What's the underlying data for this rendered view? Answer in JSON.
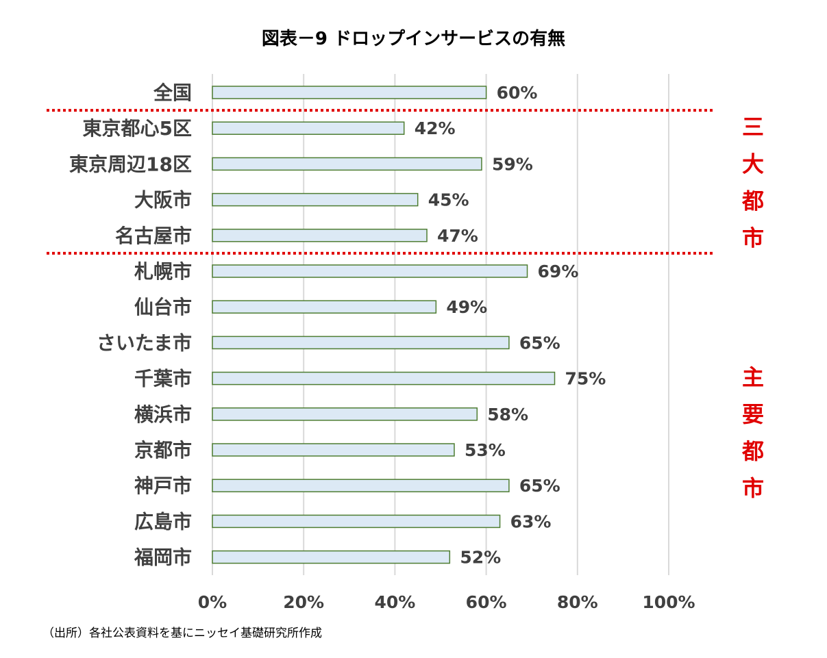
{
  "chart_data": {
    "type": "bar",
    "orientation": "horizontal",
    "title": "図表－9 ドロップインサービスの有無",
    "categories": [
      "全国",
      "東京都心5区",
      "東京周辺18区",
      "大阪市",
      "名古屋市",
      "札幌市",
      "仙台市",
      "さいたま市",
      "千葉市",
      "横浜市",
      "京都市",
      "神戸市",
      "広島市",
      "福岡市"
    ],
    "values": [
      60,
      42,
      59,
      45,
      47,
      69,
      49,
      65,
      75,
      58,
      53,
      65,
      63,
      52
    ],
    "value_labels": [
      "60%",
      "42%",
      "59%",
      "45%",
      "47%",
      "69%",
      "49%",
      "65%",
      "75%",
      "58%",
      "53%",
      "65%",
      "63%",
      "52%"
    ],
    "xlim": [
      0,
      100
    ],
    "xticks": [
      "0%",
      "20%",
      "40%",
      "60%",
      "80%",
      "100%"
    ],
    "grid": "vertical",
    "legend": "none",
    "groups": [
      {
        "label": [
          "三",
          "大",
          "都",
          "市"
        ],
        "from": 1,
        "to": 4
      },
      {
        "label": [
          "主",
          "要",
          "都",
          "市"
        ],
        "from": 5,
        "to": 13
      }
    ]
  },
  "source_note": "（出所）各社公表資料を基にニッセイ基礎研究所作成",
  "colors": {
    "bar_fill": "#dce9f5",
    "bar_stroke": "#4e7d32",
    "gridline": "#d9d9d9",
    "text": "#404040",
    "separator": "#e00000",
    "group_label": "#e00000"
  }
}
